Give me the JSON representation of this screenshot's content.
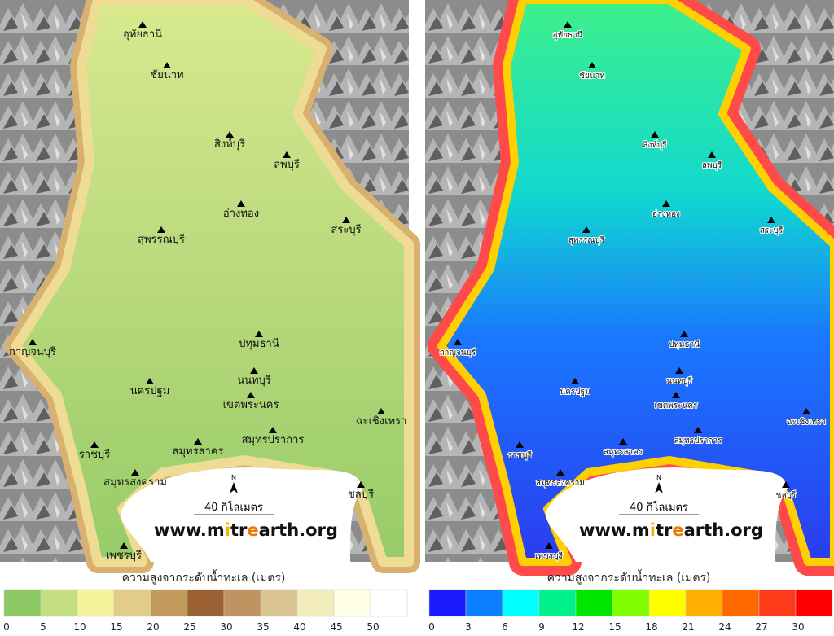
{
  "cities": [
    "อุทัยธานี",
    "ชัยนาท",
    "สิงห์บุรี",
    "ลพบุรี",
    "อ่างทอง",
    "สระบุรี",
    "สุพรรณบุรี",
    "กาญจนบุรี",
    "ปทุมธานี",
    "นนทบุรี",
    "นครปฐม",
    "เขตพระนคร",
    "ฉะเชิงเทรา",
    "ราชบุรี",
    "สมุทรสาคร",
    "สมุทรปราการ",
    "สมุทรสงคราม",
    "ชลบุรี",
    "เพชรบุรี"
  ],
  "north_label": "N",
  "scale_label": "40 กิโลเมตร",
  "watermark": [
    "www.m",
    "i",
    "tr",
    "e",
    "arth.org"
  ],
  "legends": [
    {
      "title": "ความสูงจากระดับน้ำทะเล (เมตร)",
      "colors": [
        "#8cc863",
        "#c3df80",
        "#f4f29a",
        "#e1cc88",
        "#c29a5c",
        "#9c6132",
        "#bf9461",
        "#dbc494",
        "#f2ecbc",
        "#fefde6",
        "#ffffff"
      ],
      "ticks": [
        0,
        5,
        10,
        15,
        20,
        25,
        30,
        35,
        40,
        45,
        50
      ]
    },
    {
      "title": "ความสูงจากระดับน้ำทะเล (เมตร)",
      "colors": [
        "#1a1aff",
        "#0a80ff",
        "#00ffff",
        "#00f08a",
        "#00e600",
        "#80ff00",
        "#ffff00",
        "#ffb000",
        "#ff6a00",
        "#ff3a1a",
        "#ff0000"
      ],
      "ticks": [
        0,
        3,
        6,
        9,
        12,
        15,
        18,
        21,
        24,
        27,
        30
      ]
    }
  ]
}
